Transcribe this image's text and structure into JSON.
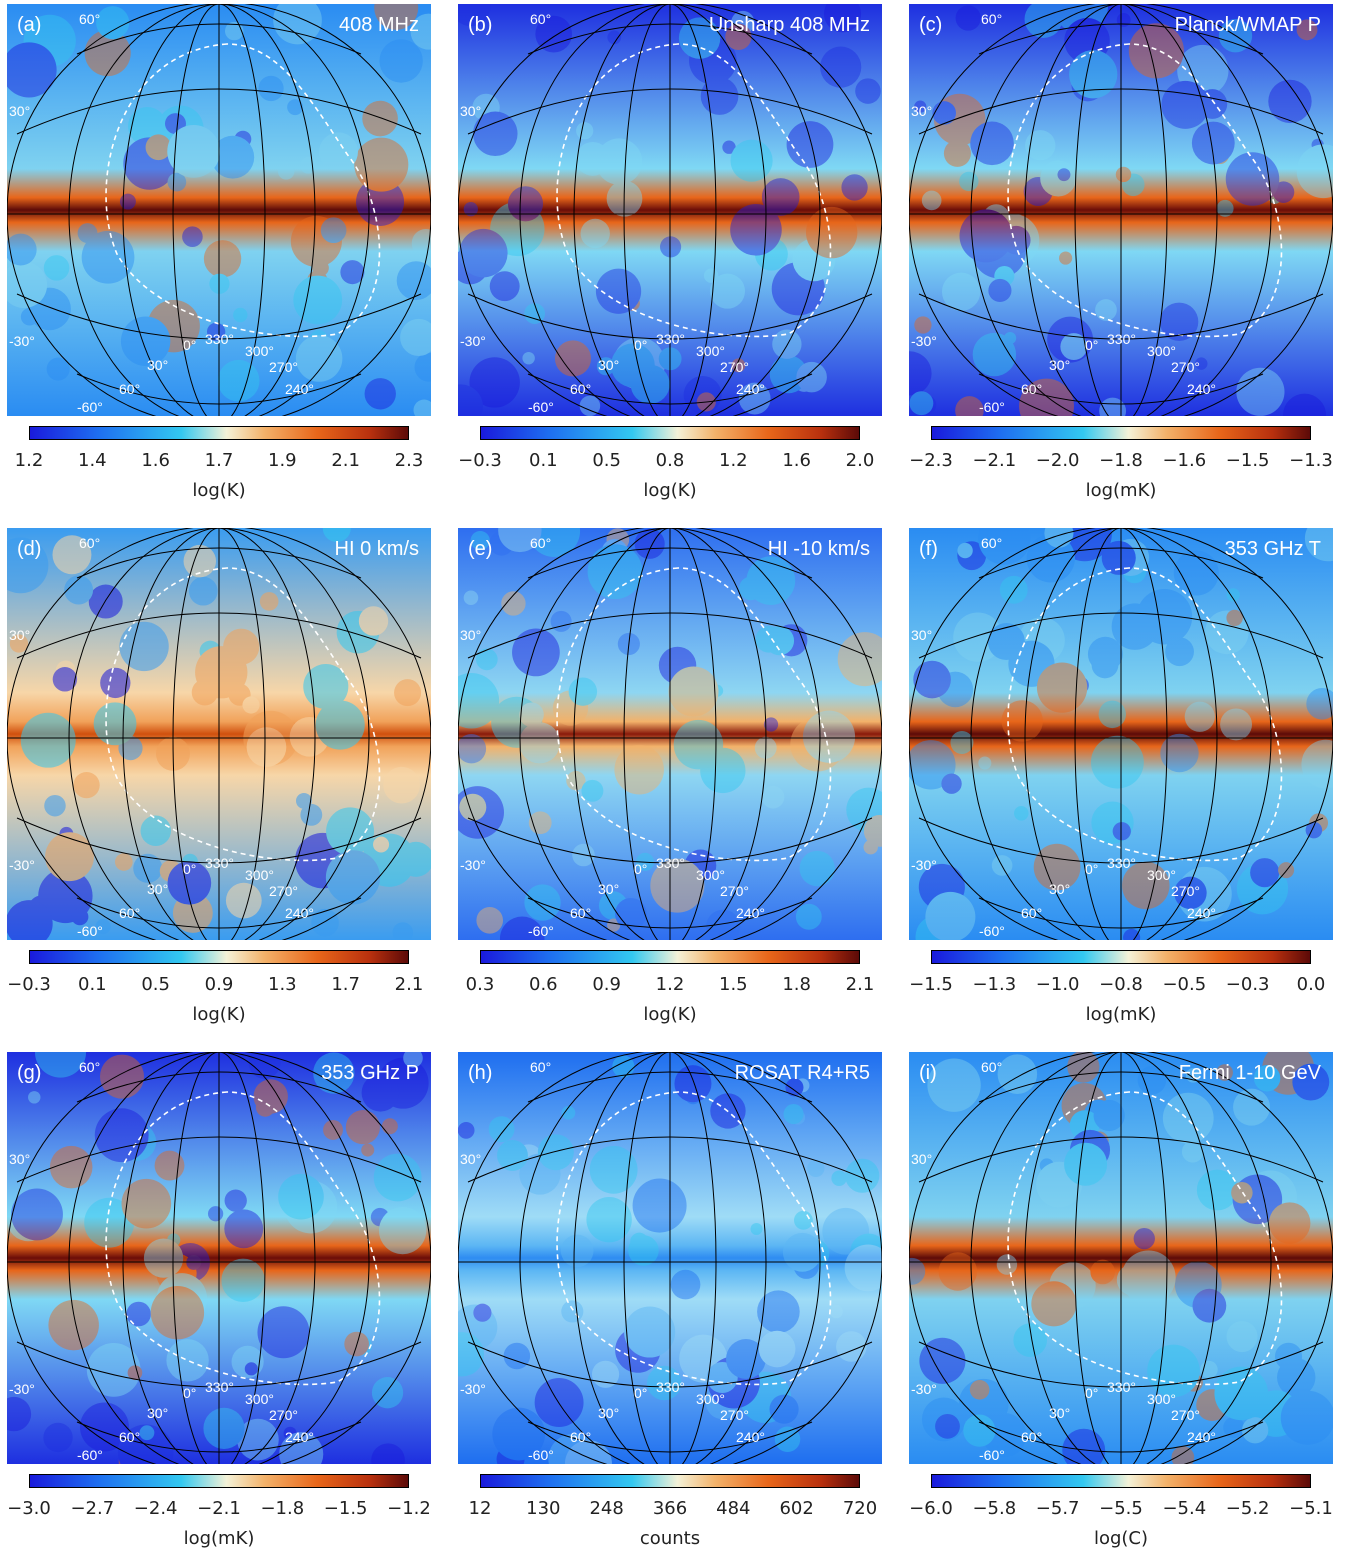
{
  "panels": [
    {
      "id": "a",
      "tag": "(a)",
      "title": "408 MHz",
      "ticks": [
        "1.2",
        "1.4",
        "1.6",
        "1.7",
        "1.9",
        "2.1",
        "2.3"
      ],
      "unit": "log(K)",
      "style": "band"
    },
    {
      "id": "b",
      "tag": "(b)",
      "title": "Unsharp 408 MHz",
      "ticks": [
        "−0.3",
        "0.1",
        "0.5",
        "0.8",
        "1.2",
        "1.6",
        "2.0"
      ],
      "unit": "log(K)",
      "style": "patchy"
    },
    {
      "id": "c",
      "tag": "(c)",
      "title": "Planck/WMAP P",
      "ticks": [
        "−2.3",
        "−2.1",
        "−2.0",
        "−1.8",
        "−1.6",
        "−1.5",
        "−1.3"
      ],
      "unit": "log(mK)",
      "style": "patchy"
    },
    {
      "id": "d",
      "tag": "(d)",
      "title": "HI 0 km/s",
      "ticks": [
        "−0.3",
        "0.1",
        "0.5",
        "0.9",
        "1.3",
        "1.7",
        "2.1"
      ],
      "unit": "log(K)",
      "style": "warm"
    },
    {
      "id": "e",
      "tag": "(e)",
      "title": "HI -10 km/s",
      "ticks": [
        "0.3",
        "0.6",
        "0.9",
        "1.2",
        "1.5",
        "1.8",
        "2.1"
      ],
      "unit": "log(K)",
      "style": "mixed"
    },
    {
      "id": "f",
      "tag": "(f)",
      "title": "353 GHz T",
      "ticks": [
        "−1.5",
        "−1.3",
        "−1.0",
        "−0.8",
        "−0.5",
        "−0.3",
        "0.0"
      ],
      "unit": "log(mK)",
      "style": "band"
    },
    {
      "id": "g",
      "tag": "(g)",
      "title": "353 GHz P",
      "ticks": [
        "−3.0",
        "−2.7",
        "−2.4",
        "−2.1",
        "−1.8",
        "−1.5",
        "−1.2"
      ],
      "unit": "log(mK)",
      "style": "patchy"
    },
    {
      "id": "h",
      "tag": "(h)",
      "title": "ROSAT R4+R5",
      "ticks": [
        "12",
        "130",
        "248",
        "366",
        "484",
        "602",
        "720"
      ],
      "unit": "counts",
      "style": "xray"
    },
    {
      "id": "i",
      "tag": "(i)",
      "title": "Fermi 1-10 GeV",
      "ticks": [
        "−6.0",
        "−5.8",
        "−5.7",
        "−5.5",
        "−5.4",
        "−5.2",
        "−5.1"
      ],
      "unit": "log(C)",
      "style": "band"
    }
  ],
  "grid_labels": {
    "lat_60": "60°",
    "lat_30": "30°",
    "lat_m30": "-30°",
    "lat_m60": "-60°",
    "lon_0": "0°",
    "lon_330": "330°",
    "lon_300": "300°",
    "lon_270": "270°",
    "lon_240": "240°",
    "lon_30": "30°",
    "lon_60": "60°"
  },
  "colors": {
    "deep_blue": "#1a1adc",
    "blue": "#1e6ef0",
    "cyan": "#33c8f0",
    "cream": "#f4f2d8",
    "orange": "#e8661a",
    "dark_red": "#5c0a08"
  }
}
